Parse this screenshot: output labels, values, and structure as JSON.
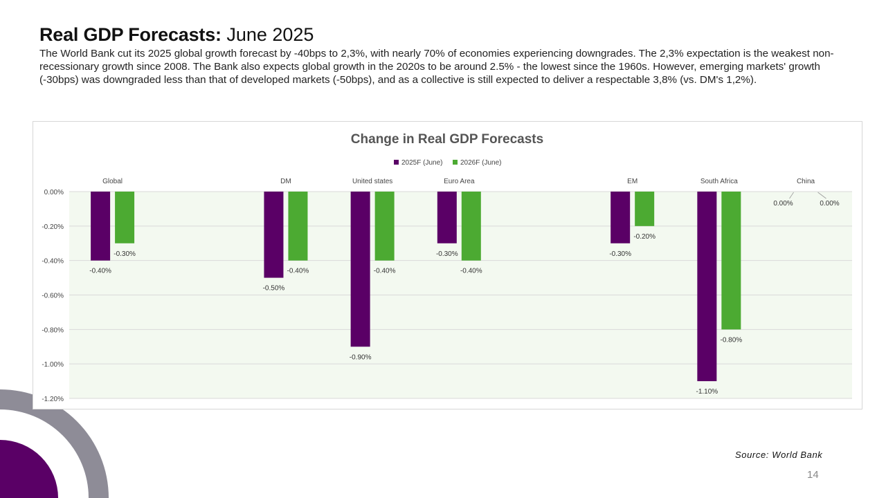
{
  "header": {
    "title_bold": "Real GDP Forecasts:",
    "title_light": "June 2025",
    "subtitle": "The World Bank cut its 2025 global growth forecast by -40bps to 2,3%, with nearly 70% of economies experiencing downgrades. The 2,3% expectation is the weakest non-recessionary growth since 2008. The Bank also expects global growth in the 2020s to be around 2.5% - the lowest since the 1960s. However, emerging markets' growth (-30bps) was downgraded less than that of developed markets (-50bps), and as a collective is still expected to deliver a respectable 3,8% (vs. DM's 1,2%)."
  },
  "footer": {
    "source": "Source: World Bank",
    "page_number": "14"
  },
  "colors": {
    "series_2025": "#5a0066",
    "series_2026": "#4caa32",
    "plot_bg": "#f3f9f0",
    "deco_gray": "#8e8c97",
    "deco_purple": "#5a0066"
  },
  "chart_data": {
    "type": "bar",
    "title": "Change in Real GDP Forecasts",
    "xlabel": "",
    "ylabel": "",
    "ylim": [
      -1.2,
      0
    ],
    "yticks": [
      "0.00%",
      "-0.20%",
      "-0.40%",
      "-0.60%",
      "-0.80%",
      "-1.00%",
      "-1.20%"
    ],
    "grid": true,
    "legend_position": "top",
    "categories": [
      "Global",
      "",
      "DM",
      "United states",
      "Euro Area",
      "",
      "EM",
      "South Africa",
      "China"
    ],
    "series": [
      {
        "name": "2025F (June)",
        "values": [
          -0.4,
          null,
          -0.5,
          -0.9,
          -0.3,
          null,
          -0.3,
          -1.1,
          0.0
        ],
        "labels": [
          "-0.40%",
          "",
          "-0.50%",
          "-0.90%",
          "-0.30%",
          "",
          "-0.30%",
          "-1.10%",
          "0.00%"
        ]
      },
      {
        "name": "2026F (June)",
        "values": [
          -0.3,
          null,
          -0.4,
          -0.4,
          -0.4,
          null,
          -0.2,
          -0.8,
          0.0
        ],
        "labels": [
          "-0.30%",
          "",
          "-0.40%",
          "-0.40%",
          "-0.40%",
          "",
          "-0.20%",
          "-0.80%",
          "0.00%"
        ]
      }
    ]
  }
}
